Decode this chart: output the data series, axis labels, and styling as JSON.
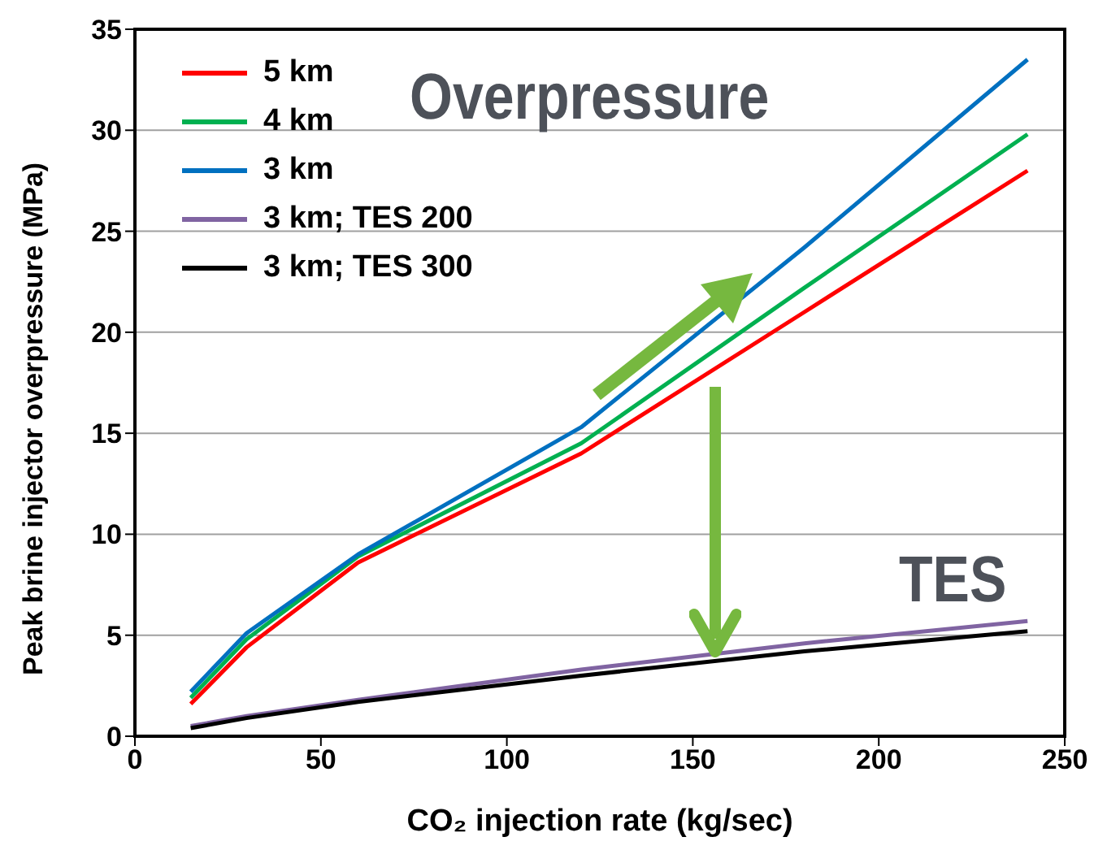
{
  "chart_data": {
    "type": "line",
    "xlabel": "CO₂ injection rate (kg/sec)",
    "ylabel": "Peak brine injector overpressure (MPa)",
    "annotations": [
      "Overpressure",
      "TES"
    ],
    "x": [
      15,
      30,
      60,
      120,
      180,
      240
    ],
    "series": [
      {
        "name": "5 km",
        "color": "#ff0000",
        "values": [
          1.6,
          4.4,
          8.6,
          14.0,
          21.0,
          28.0
        ]
      },
      {
        "name": "4 km",
        "color": "#00b050",
        "values": [
          1.9,
          4.8,
          8.9,
          14.5,
          22.2,
          29.8
        ]
      },
      {
        "name": "3 km",
        "color": "#0070c0",
        "values": [
          2.2,
          5.1,
          9.0,
          15.3,
          24.2,
          33.5
        ]
      },
      {
        "name": "3 km; TES 200",
        "color": "#8064a2",
        "values": [
          0.5,
          1.0,
          1.8,
          3.3,
          4.6,
          5.7
        ]
      },
      {
        "name": "3 km; TES 300",
        "color": "#000000",
        "values": [
          0.4,
          0.9,
          1.7,
          3.0,
          4.2,
          5.2
        ]
      }
    ],
    "xlim": [
      0,
      250
    ],
    "xticks": [
      0,
      50,
      100,
      150,
      200,
      250
    ],
    "ylim": [
      0,
      35
    ],
    "yticks": [
      0,
      5,
      10,
      15,
      20,
      25,
      30,
      35
    ],
    "grid": "y",
    "legend": "top left",
    "marker": "none",
    "line_style": "solid"
  }
}
